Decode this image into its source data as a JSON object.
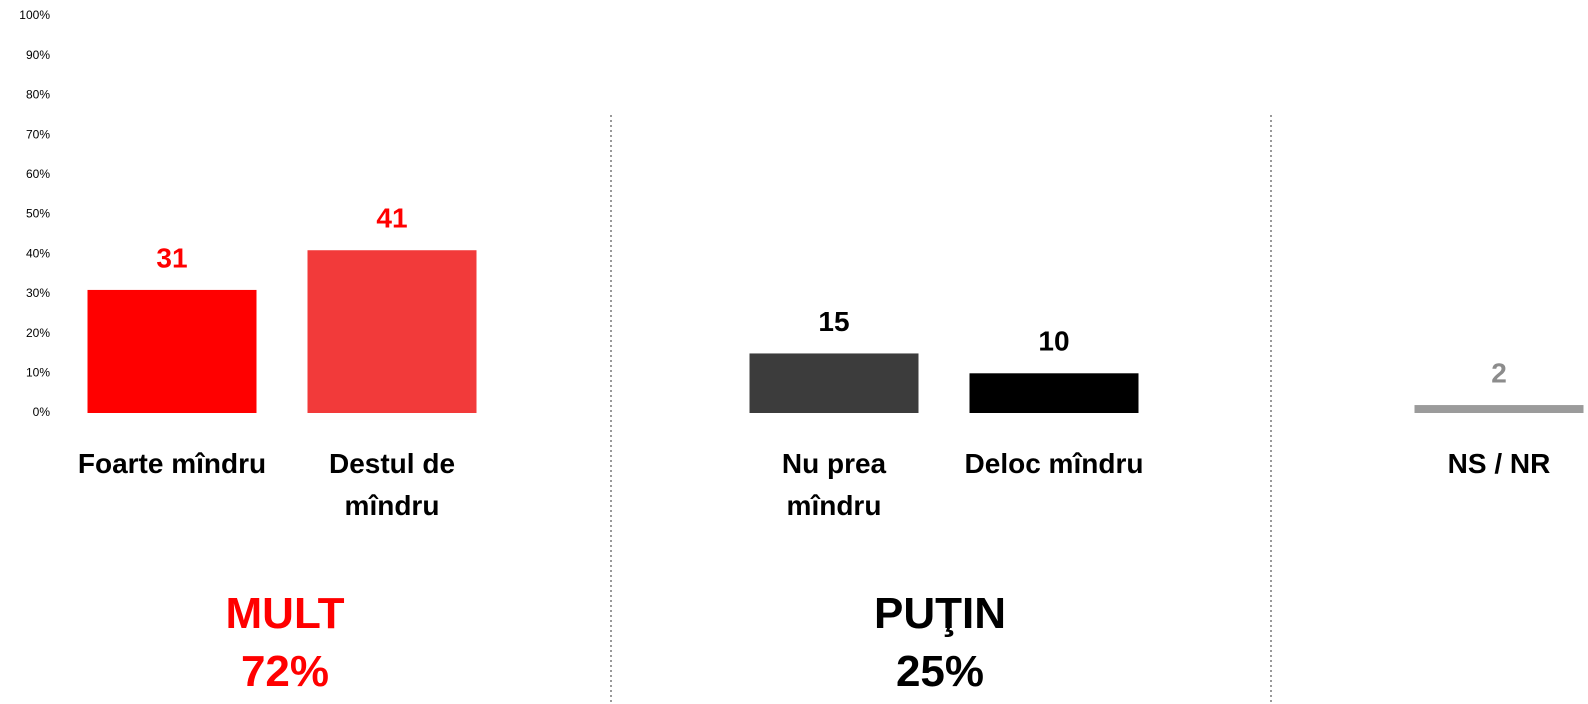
{
  "chart_data": {
    "type": "bar",
    "categories": [
      "Foarte mîndru",
      "Destul de mîndru",
      "Nu prea mîndru",
      "Deloc mîndru",
      "NS / NR"
    ],
    "values": [
      31,
      41,
      15,
      10,
      2
    ],
    "colors": [
      "#ff0000",
      "#f23a3a",
      "#3c3c3c",
      "#000000",
      "#9b9b9b"
    ],
    "label_colors": [
      "#ff0000",
      "#ff0000",
      "#000000",
      "#000000",
      "#8c8c8c"
    ],
    "ylim": [
      0,
      100
    ],
    "yticks": [
      {
        "value": 0,
        "label": "0%"
      },
      {
        "value": 10,
        "label": "10%"
      },
      {
        "value": 20,
        "label": "20%"
      },
      {
        "value": 30,
        "label": "30%"
      },
      {
        "value": 40,
        "label": "40%"
      },
      {
        "value": 50,
        "label": "50%"
      },
      {
        "value": 60,
        "label": "60%"
      },
      {
        "value": 70,
        "label": "70%"
      },
      {
        "value": 80,
        "label": "80%"
      },
      {
        "value": 90,
        "label": "90%"
      },
      {
        "value": 100,
        "label": "100%"
      }
    ],
    "groups": [
      {
        "name": "MULT",
        "total": "72%",
        "color": "#ff0000"
      },
      {
        "name": "PUŢIN",
        "total": "25%",
        "color": "#000000"
      }
    ]
  }
}
